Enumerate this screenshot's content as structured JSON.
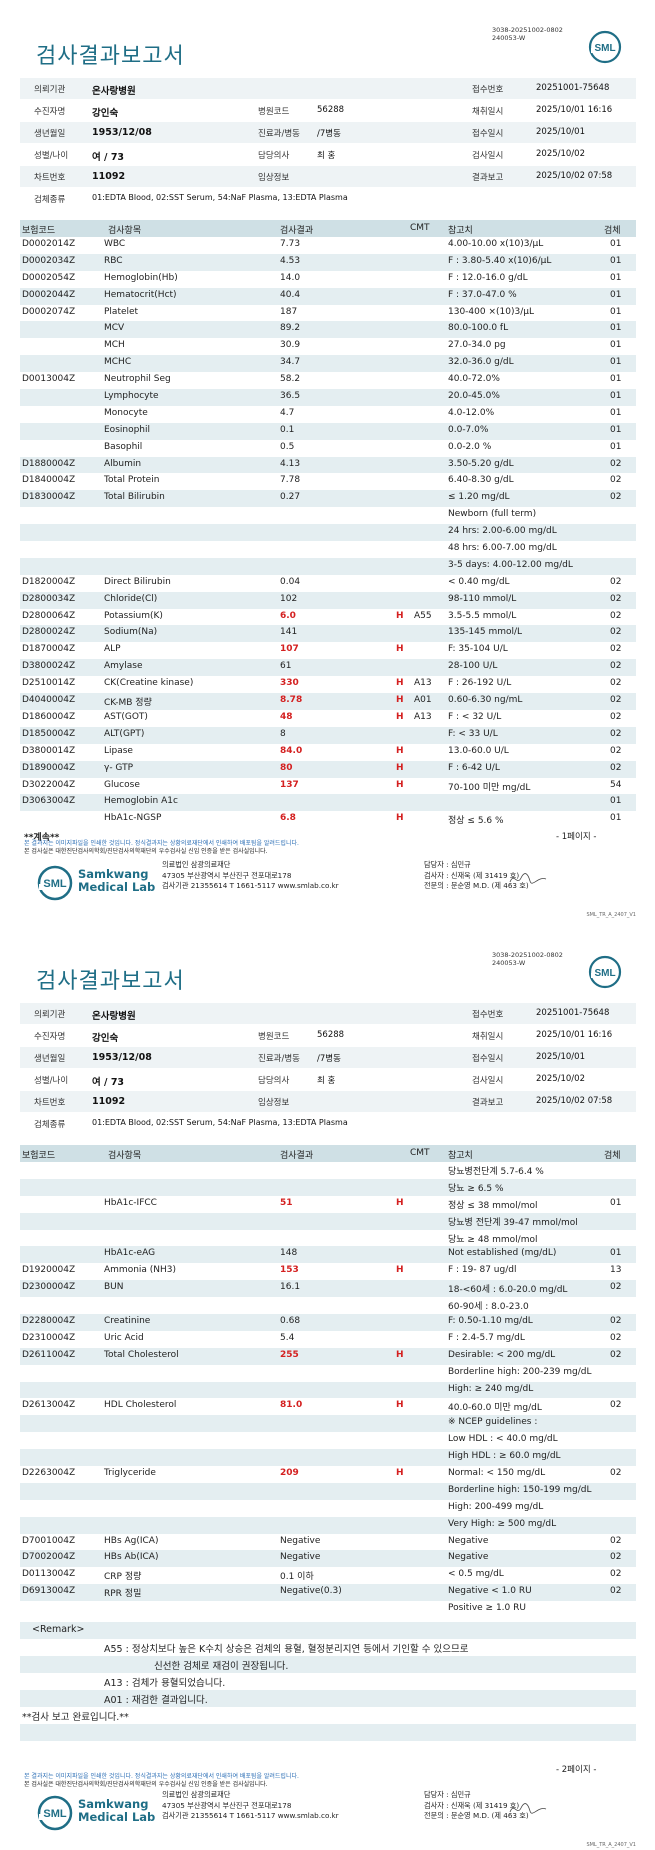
{
  "doc_id": [
    "3038-20251002-0802",
    "240053-W"
  ],
  "title": "검사결과보고서",
  "logo_text": "SML",
  "info": {
    "hospital_label": "의뢰기관",
    "hospital": "온사랑병원",
    "receipt_label": "접수번호",
    "receipt": "20251001-75648",
    "patient_label": "수진자명",
    "patient": "강인숙",
    "hospcode_label": "병원코드",
    "hospcode": "56288",
    "collect_label": "채취일시",
    "collect": "2025/10/01 16:16",
    "dob_label": "생년월일",
    "dob": "1953/12/08",
    "dept_label": "진료과/병동",
    "dept": "/7병동",
    "recv_label": "접수일시",
    "recv": "2025/10/01",
    "sexage_label": "성별/나이",
    "sexage": "여 / 73",
    "doctor_label": "담당의사",
    "doctor": "최 홍",
    "test_label": "검사일시",
    "test": "2025/10/02",
    "chart_label": "차트번호",
    "chart": "11092",
    "clinical_label": "임상정보",
    "clinical": "",
    "report_label": "결과보고",
    "report": "2025/10/02 07:58",
    "spec_label": "검체종류",
    "spec": "01:EDTA Blood, 02:SST Serum, 54:NaF Plasma, 13:EDTA Plasma"
  },
  "headers": {
    "code": "보험코드",
    "item": "검사항목",
    "result": "검사결과",
    "cmt": "CMT",
    "ref": "참고치",
    "spec": "검체"
  },
  "page1_rows": [
    {
      "code": "D0002014Z",
      "item": "WBC",
      "result": "7.73",
      "flag": "",
      "cmt": "",
      "ref": "4.00-10.00 x(10)3/μL",
      "spec": "01"
    },
    {
      "code": "D0002034Z",
      "item": "RBC",
      "result": "4.53",
      "flag": "",
      "cmt": "",
      "ref": "F : 3.80-5.40 x(10)6/μL",
      "spec": "01"
    },
    {
      "code": "D0002054Z",
      "item": "Hemoglobin(Hb)",
      "result": "14.0",
      "flag": "",
      "cmt": "",
      "ref": "F : 12.0-16.0 g/dL",
      "spec": "01"
    },
    {
      "code": "D0002044Z",
      "item": "Hematocrit(Hct)",
      "result": "40.4",
      "flag": "",
      "cmt": "",
      "ref": "F : 37.0-47.0 %",
      "spec": "01"
    },
    {
      "code": "D0002074Z",
      "item": "Platelet",
      "result": "187",
      "flag": "",
      "cmt": "",
      "ref": "130-400 ×(10)3/μL",
      "spec": "01"
    },
    {
      "code": "",
      "item": "MCV",
      "result": "89.2",
      "flag": "",
      "cmt": "",
      "ref": "80.0-100.0 fL",
      "spec": "01"
    },
    {
      "code": "",
      "item": "MCH",
      "result": "30.9",
      "flag": "",
      "cmt": "",
      "ref": "27.0-34.0 pg",
      "spec": "01"
    },
    {
      "code": "",
      "item": "MCHC",
      "result": "34.7",
      "flag": "",
      "cmt": "",
      "ref": "32.0-36.0 g/dL",
      "spec": "01"
    },
    {
      "code": "D0013004Z",
      "item": "Neutrophil Seg",
      "result": "58.2",
      "flag": "",
      "cmt": "",
      "ref": "40.0-72.0%",
      "spec": "01"
    },
    {
      "code": "",
      "item": "Lymphocyte",
      "result": "36.5",
      "flag": "",
      "cmt": "",
      "ref": "20.0-45.0%",
      "spec": "01"
    },
    {
      "code": "",
      "item": "Monocyte",
      "result": "4.7",
      "flag": "",
      "cmt": "",
      "ref": "4.0-12.0%",
      "spec": "01"
    },
    {
      "code": "",
      "item": "Eosinophil",
      "result": "0.1",
      "flag": "",
      "cmt": "",
      "ref": "0.0-7.0%",
      "spec": "01"
    },
    {
      "code": "",
      "item": "Basophil",
      "result": "0.5",
      "flag": "",
      "cmt": "",
      "ref": "0.0-2.0 %",
      "spec": "01"
    },
    {
      "code": "D1880004Z",
      "item": "Albumin",
      "result": "4.13",
      "flag": "",
      "cmt": "",
      "ref": "3.50-5.20 g/dL",
      "spec": "02"
    },
    {
      "code": "D1840004Z",
      "item": "Total Protein",
      "result": "7.78",
      "flag": "",
      "cmt": "",
      "ref": "6.40-8.30 g/dL",
      "spec": "02"
    },
    {
      "code": "D1830004Z",
      "item": "Total Bilirubin",
      "result": "0.27",
      "flag": "",
      "cmt": "",
      "ref": "≤ 1.20 mg/dL",
      "spec": "02"
    },
    {
      "code": "",
      "item": "",
      "result": "",
      "flag": "",
      "cmt": "",
      "ref": "Newborn (full term)",
      "spec": ""
    },
    {
      "code": "",
      "item": "",
      "result": "",
      "flag": "",
      "cmt": "",
      "ref": "24 hrs: 2.00-6.00 mg/dL",
      "spec": ""
    },
    {
      "code": "",
      "item": "",
      "result": "",
      "flag": "",
      "cmt": "",
      "ref": "48 hrs: 6.00-7.00 mg/dL",
      "spec": ""
    },
    {
      "code": "",
      "item": "",
      "result": "",
      "flag": "",
      "cmt": "",
      "ref": "3-5 days: 4.00-12.00 mg/dL",
      "spec": ""
    },
    {
      "code": "D1820004Z",
      "item": "Direct Bilirubin",
      "result": "0.04",
      "flag": "",
      "cmt": "",
      "ref": "< 0.40 mg/dL",
      "spec": "02"
    },
    {
      "code": "D2800034Z",
      "item": "Chloride(Cl)",
      "result": "102",
      "flag": "",
      "cmt": "",
      "ref": "98-110 mmol/L",
      "spec": "02"
    },
    {
      "code": "D2800064Z",
      "item": "Potassium(K)",
      "result": "6.0",
      "flag": "H",
      "cmt": "A55",
      "ref": "3.5-5.5 mmol/L",
      "spec": "02"
    },
    {
      "code": "D2800024Z",
      "item": "Sodium(Na)",
      "result": "141",
      "flag": "",
      "cmt": "",
      "ref": "135-145 mmol/L",
      "spec": "02"
    },
    {
      "code": "D1870004Z",
      "item": "ALP",
      "result": "107",
      "flag": "H",
      "cmt": "",
      "ref": "F: 35-104 U/L",
      "spec": "02"
    },
    {
      "code": "D3800024Z",
      "item": "Amylase",
      "result": "61",
      "flag": "",
      "cmt": "",
      "ref": "28-100 U/L",
      "spec": "02"
    },
    {
      "code": "D2510014Z",
      "item": "CK(Creatine kinase)",
      "result": "330",
      "flag": "H",
      "cmt": "A13",
      "ref": "F : 26-192 U/L",
      "spec": "02"
    },
    {
      "code": "D4040004Z",
      "item": "CK-MB 정량",
      "result": "8.78",
      "flag": "H",
      "cmt": "A01",
      "ref": "0.60-6.30 ng/mL",
      "spec": "02"
    },
    {
      "code": "D1860004Z",
      "item": "AST(GOT)",
      "result": "48",
      "flag": "H",
      "cmt": "A13",
      "ref": "F : < 32 U/L",
      "spec": "02"
    },
    {
      "code": "D1850004Z",
      "item": "ALT(GPT)",
      "result": "8",
      "flag": "",
      "cmt": "",
      "ref": "F: < 33 U/L",
      "spec": "02"
    },
    {
      "code": "D3800014Z",
      "item": "Lipase",
      "result": "84.0",
      "flag": "H",
      "cmt": "",
      "ref": "13.0-60.0 U/L",
      "spec": "02"
    },
    {
      "code": "D1890004Z",
      "item": "γ- GTP",
      "result": "80",
      "flag": "H",
      "cmt": "",
      "ref": "F : 6-42 U/L",
      "spec": "02"
    },
    {
      "code": "D3022004Z",
      "item": "Glucose",
      "result": "137",
      "flag": "H",
      "cmt": "",
      "ref": "70-100 미만 mg/dL",
      "spec": "54"
    },
    {
      "code": "D3063004Z",
      "item": "Hemoglobin A1c",
      "result": "",
      "flag": "",
      "cmt": "",
      "ref": "",
      "spec": "01"
    },
    {
      "code": "",
      "item": "HbA1c-NGSP",
      "result": "6.8",
      "flag": "H",
      "cmt": "",
      "ref": "정상 ≤ 5.6 %",
      "spec": "01"
    }
  ],
  "page2_rows": [
    {
      "code": "",
      "item": "",
      "result": "",
      "flag": "",
      "cmt": "",
      "ref": "당뇨병전단계 5.7-6.4 %",
      "spec": ""
    },
    {
      "code": "",
      "item": "",
      "result": "",
      "flag": "",
      "cmt": "",
      "ref": "당뇨 ≥ 6.5 %",
      "spec": ""
    },
    {
      "code": "",
      "item": "HbA1c-IFCC",
      "result": "51",
      "flag": "H",
      "cmt": "",
      "ref": "정상 ≤ 38 mmol/mol",
      "spec": "01"
    },
    {
      "code": "",
      "item": "",
      "result": "",
      "flag": "",
      "cmt": "",
      "ref": "당뇨병 전단계 39-47 mmol/mol",
      "spec": ""
    },
    {
      "code": "",
      "item": "",
      "result": "",
      "flag": "",
      "cmt": "",
      "ref": "당뇨 ≥ 48 mmol/mol",
      "spec": ""
    },
    {
      "code": "",
      "item": "HbA1c-eAG",
      "result": "148",
      "flag": "",
      "cmt": "",
      "ref": "Not established (mg/dL)",
      "spec": "01"
    },
    {
      "code": "D1920004Z",
      "item": "Ammonia (NH3)",
      "result": "153",
      "flag": "H",
      "cmt": "",
      "ref": "F : 19- 87 ug/dl",
      "spec": "13"
    },
    {
      "code": "D2300004Z",
      "item": "BUN",
      "result": "16.1",
      "flag": "",
      "cmt": "",
      "ref": "18-<60세 : 6.0-20.0 mg/dL",
      "spec": "02"
    },
    {
      "code": "",
      "item": "",
      "result": "",
      "flag": "",
      "cmt": "",
      "ref": "60-90세 : 8.0-23.0",
      "spec": ""
    },
    {
      "code": "D2280004Z",
      "item": "Creatinine",
      "result": "0.68",
      "flag": "",
      "cmt": "",
      "ref": "F: 0.50-1.10 mg/dL",
      "spec": "02"
    },
    {
      "code": "D2310004Z",
      "item": "Uric Acid",
      "result": "5.4",
      "flag": "",
      "cmt": "",
      "ref": "F : 2.4-5.7 mg/dL",
      "spec": "02"
    },
    {
      "code": "D2611004Z",
      "item": "Total Cholesterol",
      "result": "255",
      "flag": "H",
      "cmt": "",
      "ref": "Desirable: < 200 mg/dL",
      "spec": "02"
    },
    {
      "code": "",
      "item": "",
      "result": "",
      "flag": "",
      "cmt": "",
      "ref": "Borderline high: 200-239 mg/dL",
      "spec": ""
    },
    {
      "code": "",
      "item": "",
      "result": "",
      "flag": "",
      "cmt": "",
      "ref": "High: ≥ 240 mg/dL",
      "spec": ""
    },
    {
      "code": "D2613004Z",
      "item": "HDL Cholesterol",
      "result": "81.0",
      "flag": "H",
      "cmt": "",
      "ref": "40.0-60.0 미만 mg/dL",
      "spec": "02"
    },
    {
      "code": "",
      "item": "",
      "result": "",
      "flag": "",
      "cmt": "",
      "ref": "※ NCEP guidelines :",
      "spec": ""
    },
    {
      "code": "",
      "item": "",
      "result": "",
      "flag": "",
      "cmt": "",
      "ref": "Low HDL : < 40.0 mg/dL",
      "spec": ""
    },
    {
      "code": "",
      "item": "",
      "result": "",
      "flag": "",
      "cmt": "",
      "ref": "High HDL : ≥ 60.0 mg/dL",
      "spec": ""
    },
    {
      "code": "D2263004Z",
      "item": "Triglyceride",
      "result": "209",
      "flag": "H",
      "cmt": "",
      "ref": "Normal: < 150 mg/dL",
      "spec": "02"
    },
    {
      "code": "",
      "item": "",
      "result": "",
      "flag": "",
      "cmt": "",
      "ref": "Borderline high: 150-199 mg/dL",
      "spec": ""
    },
    {
      "code": "",
      "item": "",
      "result": "",
      "flag": "",
      "cmt": "",
      "ref": "High: 200-499 mg/dL",
      "spec": ""
    },
    {
      "code": "",
      "item": "",
      "result": "",
      "flag": "",
      "cmt": "",
      "ref": "Very High: ≥ 500 mg/dL",
      "spec": ""
    },
    {
      "code": "D7001004Z",
      "item": "HBs Ag(ICA)",
      "result": "Negative",
      "flag": "",
      "cmt": "",
      "ref": "Negative",
      "spec": "02"
    },
    {
      "code": "D7002004Z",
      "item": "HBs Ab(ICA)",
      "result": "Negative",
      "flag": "",
      "cmt": "",
      "ref": "Negative",
      "spec": "02"
    },
    {
      "code": "D0113004Z",
      "item": "CRP 정량",
      "result": "0.1 이하",
      "flag": "",
      "cmt": "",
      "ref": "< 0.5 mg/dL",
      "spec": "02"
    },
    {
      "code": "D6913004Z",
      "item": "RPR 정밀",
      "result": "Negative(0.3)",
      "flag": "",
      "cmt": "",
      "ref": "Negative < 1.0 RU",
      "spec": "02"
    },
    {
      "code": "",
      "item": "",
      "result": "",
      "flag": "",
      "cmt": "",
      "ref": "Positive ≥ 1.0 RU",
      "spec": ""
    }
  ],
  "remarks": {
    "header": "<Remark>",
    "a55_line1": "A55 : 정상치보다 높은 K수치 상승은 검체의 용혈, 혈정분리지연 등에서 기인할 수 있으므로",
    "a55_line2": "신선한 검체로 재검이 권장됩니다.",
    "a13": "A13 : 검체가 용혈되었습니다.",
    "a01": "A01 : 재검한 결과입니다.",
    "done": "**검사 보고 완료입니다.**"
  },
  "continued": "**계속**",
  "page1_num": "- 1페이지 -",
  "page2_num": "- 2페이지 -",
  "notice_blue": "본 결과지는 이미지파일을 인쇄한 것입니다. 정식결과지는 상황의료재단에서 인쇄하여 배포됨을 알려드립니다.",
  "notice_black": "본 검사실은 대한진단검사의학회/진단검사의학재단의 우수검사실 신임 인증을 받은 검사실입니다.",
  "footer": {
    "brand1": "Samkwang",
    "brand2": "Medical Lab",
    "org": "의료법인 삼광의료재단",
    "addr": "47305 부산광역시 부산진구 전포대로178",
    "reg": "검사기관 21355614 T 1661-5117 www.smlab.co.kr",
    "staff1": "담당자 : 심민규",
    "staff2": "검사자 : 신재욱 (제 31419 호)",
    "staff3": "전문의 : 문순영 M.D. (제 463 호)",
    "code": "SML_TR_A_2407_V1"
  },
  "colors": {
    "title": "#1f6e86",
    "header_bg": "#cfe0e5",
    "stripe": "#e4eef1",
    "high": "#d42020"
  }
}
